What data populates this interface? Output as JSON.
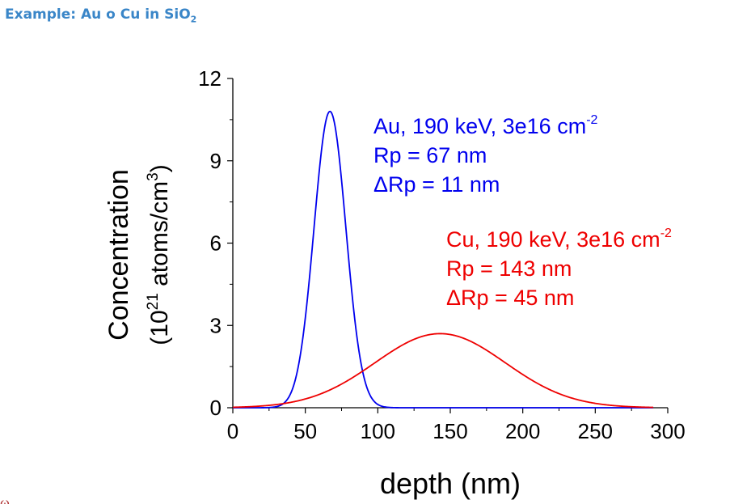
{
  "header": {
    "title_main": "Example: Au o Cu in SiO",
    "title_sub": "2"
  },
  "chart_data": {
    "type": "line",
    "xlabel": "depth (nm)",
    "ylabel_line1": "Concentration",
    "ylabel_line2": {
      "pre": "(10",
      "sup1": "21",
      "mid": " atoms/cm",
      "sup2": "3",
      "post": ")"
    },
    "xlim": [
      0,
      300
    ],
    "ylim": [
      0,
      12
    ],
    "xticks": [
      0,
      50,
      100,
      150,
      200,
      250,
      300
    ],
    "yticks": [
      0,
      3,
      6,
      9,
      12
    ],
    "grid": false,
    "series": [
      {
        "name": "Au",
        "color": "#0000ee",
        "model": "gaussian",
        "peak": 10.8,
        "rp": 67,
        "sigma": 11,
        "x_range": [
          0,
          290
        ],
        "annotation": {
          "line1": "Au, 190 keV, 3e16 cm",
          "line1_sup": "-2",
          "line2": "Rp = 67 nm",
          "line3": "ΔRp = 11 nm"
        }
      },
      {
        "name": "Cu",
        "color": "#ee0000",
        "model": "gaussian",
        "peak": 2.7,
        "rp": 143,
        "sigma": 45,
        "x_range": [
          0,
          290
        ],
        "annotation": {
          "line1": "Cu, 190 keV, 3e16 cm",
          "line1_sup": "-2",
          "line2": "Rp = 143 nm",
          "line3": "ΔRp = 45 nm"
        }
      }
    ]
  }
}
